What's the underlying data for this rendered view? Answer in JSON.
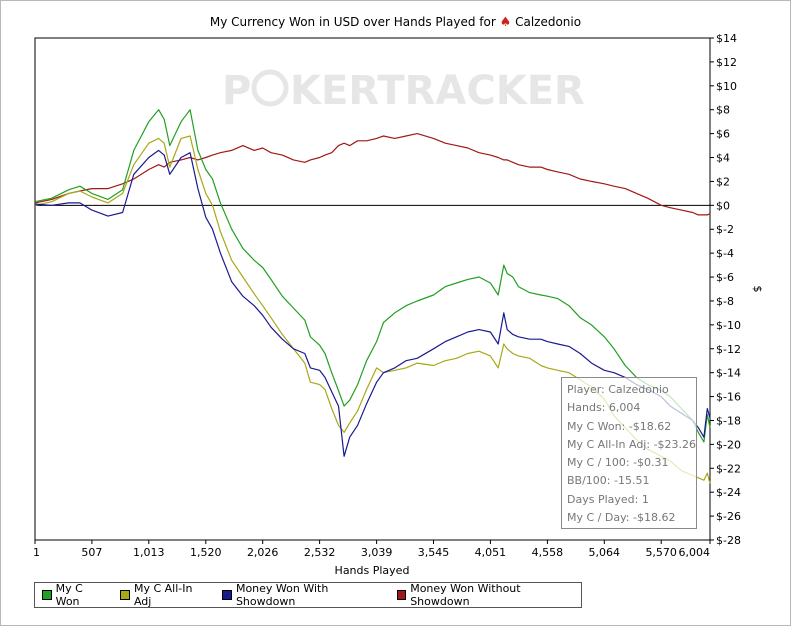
{
  "title": {
    "prefix": "My Currency Won in USD over Hands Played for",
    "spade_glyph": "♠",
    "player": "Calzedonio"
  },
  "watermark": {
    "text_a": "P",
    "text_b": "KERTRACKER"
  },
  "colors": {
    "green": "#22a022",
    "olive": "#a8a818",
    "navy": "#1a1a90",
    "red": "#a01818",
    "axis": "#000000",
    "zero_line": "#000000",
    "watermark": "#e6e6e6"
  },
  "chart_data": {
    "type": "line",
    "xlabel": "Hands Played",
    "ylabel": "$",
    "xlim": [
      1,
      6004
    ],
    "ylim": [
      -28,
      14
    ],
    "x_ticks": [
      "1",
      "507",
      "1,013",
      "1,520",
      "2,026",
      "2,532",
      "3,039",
      "3,545",
      "4,051",
      "4,558",
      "5,064",
      "5,570",
      "6,004"
    ],
    "x_tick_values": [
      1,
      507,
      1013,
      1520,
      2026,
      2532,
      3039,
      3545,
      4051,
      4558,
      5064,
      5570,
      6004
    ],
    "y_ticks": [
      "$14",
      "$12",
      "$10",
      "$8",
      "$6",
      "$4",
      "$2",
      "$0",
      "$-2",
      "$-4",
      "$-6",
      "$-8",
      "$-10",
      "$-12",
      "$-14",
      "$-16",
      "$-18",
      "$-20",
      "$-22",
      "$-24",
      "$-26",
      "$-28"
    ],
    "y_tick_values": [
      14,
      12,
      10,
      8,
      6,
      4,
      2,
      0,
      -2,
      -4,
      -6,
      -8,
      -10,
      -12,
      -14,
      -16,
      -18,
      -20,
      -22,
      -24,
      -26,
      -28
    ],
    "grid": false,
    "legend_position": "bottom",
    "series": [
      {
        "name": "My C Won",
        "color_key": "green",
        "x": [
          1,
          150,
          300,
          400,
          507,
          650,
          780,
          880,
          1013,
          1100,
          1150,
          1200,
          1300,
          1380,
          1450,
          1520,
          1580,
          1650,
          1750,
          1850,
          1950,
          2026,
          2100,
          2200,
          2300,
          2400,
          2450,
          2532,
          2580,
          2640,
          2700,
          2750,
          2800,
          2870,
          2950,
          3039,
          3100,
          3200,
          3300,
          3400,
          3545,
          3650,
          3750,
          3850,
          3950,
          4051,
          4120,
          4170,
          4200,
          4250,
          4300,
          4400,
          4500,
          4558,
          4650,
          4750,
          4850,
          4950,
          5064,
          5150,
          5250,
          5350,
          5450,
          5570,
          5650,
          5750,
          5850,
          5900,
          5950,
          5980,
          6004
        ],
        "y": [
          0.3,
          0.6,
          1.3,
          1.6,
          1.0,
          0.5,
          1.3,
          4.6,
          7.0,
          8.0,
          7.2,
          5.0,
          7.0,
          8.0,
          4.6,
          3.0,
          2.2,
          0.2,
          -2.0,
          -3.6,
          -4.6,
          -5.2,
          -6.2,
          -7.6,
          -8.6,
          -9.6,
          -11.0,
          -11.7,
          -12.4,
          -14.0,
          -15.5,
          -16.8,
          -16.3,
          -15.0,
          -13.0,
          -11.4,
          -9.8,
          -9.0,
          -8.4,
          -8.0,
          -7.5,
          -6.8,
          -6.5,
          -6.2,
          -6.0,
          -6.5,
          -7.5,
          -5.0,
          -5.7,
          -6.0,
          -6.8,
          -7.3,
          -7.5,
          -7.6,
          -7.8,
          -8.4,
          -9.4,
          -10.0,
          -11.0,
          -12.0,
          -13.4,
          -14.4,
          -15.0,
          -15.5,
          -16.0,
          -17.0,
          -18.0,
          -19.0,
          -19.8,
          -17.5,
          -18.6
        ]
      },
      {
        "name": "My C All-In Adj",
        "color_key": "olive",
        "x": [
          1,
          150,
          300,
          400,
          507,
          650,
          780,
          880,
          1013,
          1100,
          1150,
          1200,
          1300,
          1380,
          1450,
          1520,
          1580,
          1650,
          1750,
          1850,
          1950,
          2026,
          2100,
          2200,
          2300,
          2400,
          2450,
          2532,
          2580,
          2640,
          2700,
          2750,
          2800,
          2870,
          2950,
          3039,
          3100,
          3200,
          3300,
          3400,
          3545,
          3650,
          3750,
          3850,
          3950,
          4051,
          4120,
          4170,
          4200,
          4250,
          4300,
          4400,
          4500,
          4558,
          4650,
          4750,
          4850,
          4950,
          5064,
          5150,
          5250,
          5350,
          5450,
          5570,
          5650,
          5750,
          5850,
          5900,
          5950,
          5980,
          6004
        ],
        "y": [
          0.0,
          0.3,
          1.0,
          1.2,
          0.7,
          0.2,
          1.0,
          3.4,
          5.2,
          5.6,
          5.2,
          3.2,
          5.6,
          5.8,
          3.0,
          1.0,
          0.0,
          -2.2,
          -4.6,
          -6.0,
          -7.4,
          -8.4,
          -9.4,
          -10.8,
          -12.0,
          -13.2,
          -14.8,
          -15.0,
          -15.4,
          -17.0,
          -18.4,
          -19.0,
          -18.2,
          -17.2,
          -15.4,
          -13.6,
          -14.0,
          -13.8,
          -13.6,
          -13.2,
          -13.4,
          -13.0,
          -12.8,
          -12.4,
          -12.2,
          -12.6,
          -13.6,
          -11.6,
          -12.0,
          -12.4,
          -12.6,
          -12.8,
          -13.4,
          -13.6,
          -13.8,
          -14.0,
          -14.6,
          -15.2,
          -16.2,
          -17.6,
          -18.6,
          -19.6,
          -20.4,
          -21.0,
          -21.4,
          -22.2,
          -22.6,
          -22.8,
          -23.0,
          -22.4,
          -23.26
        ]
      },
      {
        "name": "Money Won With Showdown",
        "color_key": "navy",
        "x": [
          1,
          150,
          300,
          400,
          507,
          650,
          780,
          880,
          1013,
          1100,
          1150,
          1200,
          1300,
          1380,
          1450,
          1520,
          1580,
          1650,
          1750,
          1850,
          1950,
          2026,
          2100,
          2200,
          2300,
          2400,
          2450,
          2532,
          2580,
          2640,
          2700,
          2750,
          2800,
          2870,
          2950,
          3039,
          3100,
          3200,
          3300,
          3400,
          3545,
          3650,
          3750,
          3850,
          3950,
          4051,
          4120,
          4170,
          4200,
          4250,
          4300,
          4400,
          4500,
          4558,
          4650,
          4750,
          4850,
          4950,
          5064,
          5150,
          5250,
          5350,
          5450,
          5570,
          5650,
          5750,
          5850,
          5900,
          5950,
          5980,
          6004
        ],
        "y": [
          0.1,
          0.0,
          0.2,
          0.2,
          -0.4,
          -0.9,
          -0.6,
          2.6,
          4.0,
          4.6,
          4.2,
          2.6,
          4.0,
          4.4,
          1.4,
          -1.0,
          -2.0,
          -4.0,
          -6.4,
          -7.6,
          -8.4,
          -9.2,
          -10.2,
          -11.2,
          -12.0,
          -12.4,
          -13.6,
          -13.8,
          -14.4,
          -15.6,
          -16.8,
          -21.0,
          -19.4,
          -18.4,
          -16.6,
          -14.8,
          -14.0,
          -13.6,
          -13.0,
          -12.8,
          -12.0,
          -11.4,
          -11.0,
          -10.6,
          -10.4,
          -10.6,
          -11.6,
          -9.0,
          -10.4,
          -10.8,
          -11.0,
          -11.2,
          -11.2,
          -11.4,
          -11.6,
          -11.8,
          -12.4,
          -13.2,
          -13.8,
          -14.0,
          -14.4,
          -15.0,
          -15.4,
          -16.0,
          -16.8,
          -17.4,
          -18.0,
          -18.6,
          -19.4,
          -17.0,
          -17.8
        ]
      },
      {
        "name": "Money Won Without Showdown",
        "color_key": "red",
        "x": [
          1,
          150,
          300,
          400,
          507,
          650,
          780,
          880,
          1013,
          1100,
          1150,
          1200,
          1300,
          1380,
          1450,
          1520,
          1580,
          1650,
          1750,
          1850,
          1950,
          2026,
          2100,
          2200,
          2300,
          2400,
          2450,
          2532,
          2580,
          2640,
          2700,
          2750,
          2800,
          2870,
          2950,
          3039,
          3100,
          3200,
          3300,
          3400,
          3545,
          3650,
          3750,
          3850,
          3950,
          4051,
          4120,
          4170,
          4200,
          4250,
          4300,
          4400,
          4500,
          4558,
          4650,
          4750,
          4850,
          4950,
          5064,
          5150,
          5250,
          5350,
          5450,
          5570,
          5650,
          5750,
          5850,
          5900,
          5950,
          5980,
          6004
        ],
        "y": [
          0.2,
          0.5,
          1.0,
          1.2,
          1.4,
          1.4,
          1.8,
          2.2,
          3.0,
          3.4,
          3.2,
          3.6,
          3.8,
          4.0,
          3.8,
          4.0,
          4.2,
          4.4,
          4.6,
          5.0,
          4.6,
          4.8,
          4.4,
          4.2,
          3.8,
          3.6,
          3.8,
          4.0,
          4.2,
          4.4,
          5.0,
          5.2,
          5.0,
          5.4,
          5.4,
          5.6,
          5.8,
          5.6,
          5.8,
          6.0,
          5.6,
          5.2,
          5.0,
          4.8,
          4.4,
          4.2,
          4.0,
          3.8,
          3.8,
          3.6,
          3.4,
          3.2,
          3.2,
          3.0,
          2.8,
          2.6,
          2.2,
          2.0,
          1.8,
          1.6,
          1.4,
          1.0,
          0.6,
          0.0,
          -0.2,
          -0.4,
          -0.6,
          -0.8,
          -0.8,
          -0.8,
          -0.7
        ]
      }
    ],
    "tooltip": [
      "Player: Calzedonio",
      "Hands: 6,004",
      "My C Won: -$18.62",
      "My C All-In Adj: -$23.26",
      "My C / 100: -$0.31",
      "BB/100: -15.51",
      "Days Played: 1",
      "My C / Day: -$18.62"
    ]
  }
}
